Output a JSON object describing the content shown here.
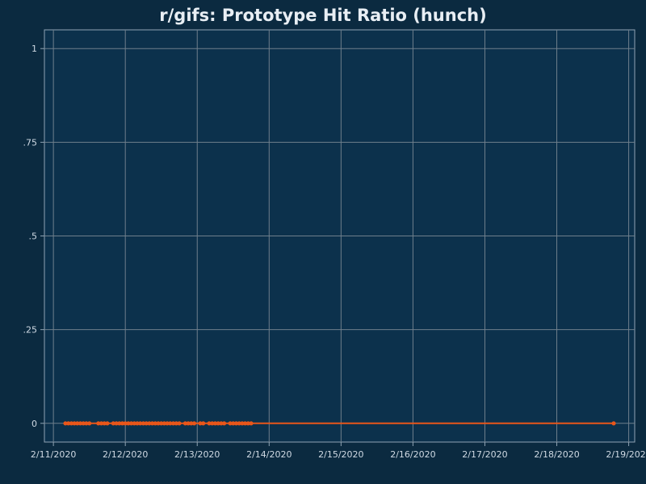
{
  "chart_data": {
    "type": "line",
    "title": "r/gifs: Prototype Hit Ratio (hunch)",
    "xlabel": "",
    "ylabel": "",
    "x_axis": {
      "type": "date",
      "ticks": [
        "2/11/2020",
        "2/12/2020",
        "2/13/2020",
        "2/14/2020",
        "2/15/2020",
        "2/16/2020",
        "2/17/2020",
        "2/18/2020",
        "2/19/2020"
      ],
      "range": [
        "2020-02-10T21:00",
        "2020-02-19T02:00"
      ]
    },
    "y_axis": {
      "ticks": [
        {
          "value": 0,
          "label": "0"
        },
        {
          "value": 0.25,
          "label": ".25"
        },
        {
          "value": 0.5,
          "label": ".5"
        },
        {
          "value": 0.75,
          "label": ".75"
        },
        {
          "value": 1,
          "label": "1"
        }
      ],
      "range": [
        -0.05,
        1.05
      ]
    },
    "grid": true,
    "legend": "none",
    "series": [
      {
        "color": "#e8561a",
        "points": [
          {
            "x": "2020-02-11T04:00",
            "y": 0
          },
          {
            "x": "2020-02-11T05:00",
            "y": 0
          },
          {
            "x": "2020-02-11T06:00",
            "y": 0
          },
          {
            "x": "2020-02-11T07:00",
            "y": 0
          },
          {
            "x": "2020-02-11T08:00",
            "y": 0
          },
          {
            "x": "2020-02-11T09:00",
            "y": 0
          },
          {
            "x": "2020-02-11T10:00",
            "y": 0
          },
          {
            "x": "2020-02-11T11:00",
            "y": 0
          },
          {
            "x": "2020-02-11T12:00",
            "y": 0
          },
          {
            "x": "2020-02-11T15:00",
            "y": 0
          },
          {
            "x": "2020-02-11T16:00",
            "y": 0
          },
          {
            "x": "2020-02-11T17:00",
            "y": 0
          },
          {
            "x": "2020-02-11T18:00",
            "y": 0
          },
          {
            "x": "2020-02-11T20:00",
            "y": 0
          },
          {
            "x": "2020-02-11T21:00",
            "y": 0
          },
          {
            "x": "2020-02-11T22:00",
            "y": 0
          },
          {
            "x": "2020-02-11T23:00",
            "y": 0
          },
          {
            "x": "2020-02-12T00:00",
            "y": 0
          },
          {
            "x": "2020-02-12T01:00",
            "y": 0
          },
          {
            "x": "2020-02-12T02:00",
            "y": 0
          },
          {
            "x": "2020-02-12T03:00",
            "y": 0
          },
          {
            "x": "2020-02-12T04:00",
            "y": 0
          },
          {
            "x": "2020-02-12T05:00",
            "y": 0
          },
          {
            "x": "2020-02-12T06:00",
            "y": 0
          },
          {
            "x": "2020-02-12T07:00",
            "y": 0
          },
          {
            "x": "2020-02-12T08:00",
            "y": 0
          },
          {
            "x": "2020-02-12T09:00",
            "y": 0
          },
          {
            "x": "2020-02-12T10:00",
            "y": 0
          },
          {
            "x": "2020-02-12T11:00",
            "y": 0
          },
          {
            "x": "2020-02-12T12:00",
            "y": 0
          },
          {
            "x": "2020-02-12T13:00",
            "y": 0
          },
          {
            "x": "2020-02-12T14:00",
            "y": 0
          },
          {
            "x": "2020-02-12T15:00",
            "y": 0
          },
          {
            "x": "2020-02-12T16:00",
            "y": 0
          },
          {
            "x": "2020-02-12T17:00",
            "y": 0
          },
          {
            "x": "2020-02-12T18:00",
            "y": 0
          },
          {
            "x": "2020-02-12T20:00",
            "y": 0
          },
          {
            "x": "2020-02-12T21:00",
            "y": 0
          },
          {
            "x": "2020-02-12T22:00",
            "y": 0
          },
          {
            "x": "2020-02-12T23:00",
            "y": 0
          },
          {
            "x": "2020-02-13T01:00",
            "y": 0
          },
          {
            "x": "2020-02-13T02:00",
            "y": 0
          },
          {
            "x": "2020-02-13T04:00",
            "y": 0
          },
          {
            "x": "2020-02-13T05:00",
            "y": 0
          },
          {
            "x": "2020-02-13T06:00",
            "y": 0
          },
          {
            "x": "2020-02-13T07:00",
            "y": 0
          },
          {
            "x": "2020-02-13T08:00",
            "y": 0
          },
          {
            "x": "2020-02-13T09:00",
            "y": 0
          },
          {
            "x": "2020-02-13T11:00",
            "y": 0
          },
          {
            "x": "2020-02-13T12:00",
            "y": 0
          },
          {
            "x": "2020-02-13T13:00",
            "y": 0
          },
          {
            "x": "2020-02-13T14:00",
            "y": 0
          },
          {
            "x": "2020-02-13T15:00",
            "y": 0
          },
          {
            "x": "2020-02-13T16:00",
            "y": 0
          },
          {
            "x": "2020-02-13T17:00",
            "y": 0
          },
          {
            "x": "2020-02-13T18:00",
            "y": 0
          },
          {
            "x": "2020-02-18T19:00",
            "y": 0
          }
        ]
      }
    ]
  }
}
